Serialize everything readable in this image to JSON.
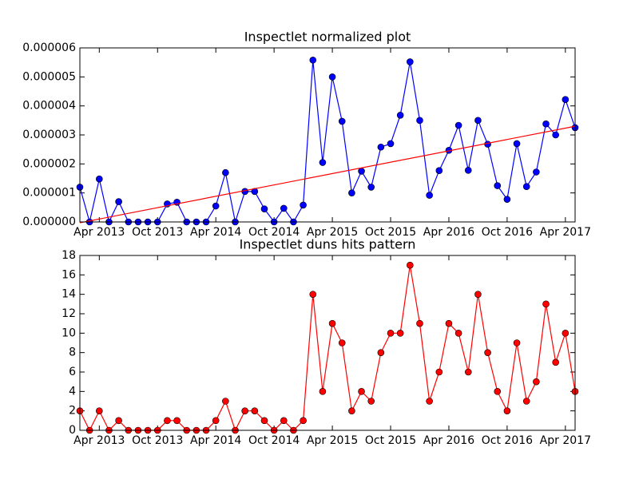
{
  "chart_data": [
    {
      "type": "line",
      "title": "Inspectlet normalized plot",
      "x": [
        "2013-02",
        "2013-03",
        "2013-04",
        "2013-05",
        "2013-06",
        "2013-07",
        "2013-08",
        "2013-09",
        "2013-10",
        "2013-11",
        "2013-12",
        "2014-01",
        "2014-02",
        "2014-03",
        "2014-04",
        "2014-05",
        "2014-06",
        "2014-07",
        "2014-08",
        "2014-09",
        "2014-10",
        "2014-11",
        "2014-12",
        "2015-01",
        "2015-02",
        "2015-03",
        "2015-04",
        "2015-05",
        "2015-06",
        "2015-07",
        "2015-08",
        "2015-09",
        "2015-10",
        "2015-11",
        "2015-12",
        "2016-01",
        "2016-02",
        "2016-03",
        "2016-04",
        "2016-05",
        "2016-06",
        "2016-07",
        "2016-08",
        "2016-09",
        "2016-10",
        "2016-11",
        "2016-12",
        "2017-01",
        "2017-02",
        "2017-03",
        "2017-04",
        "2017-05"
      ],
      "series": [
        {
          "color": "#0000ff",
          "values": [
            1.2e-06,
            0,
            1.48e-06,
            0,
            7e-07,
            0,
            0,
            0,
            0,
            6.2e-07,
            6.8e-07,
            0,
            0,
            0,
            5.5e-07,
            1.7e-06,
            0,
            1.05e-06,
            1.05e-06,
            4.5e-07,
            0,
            4.7e-07,
            0,
            5.8e-07,
            5.58e-06,
            2.05e-06,
            5e-06,
            3.47e-06,
            1e-06,
            1.75e-06,
            1.2e-06,
            2.58e-06,
            2.7e-06,
            3.68e-06,
            5.52e-06,
            3.5e-06,
            9.2e-07,
            1.77e-06,
            2.47e-06,
            3.33e-06,
            1.78e-06,
            3.5e-06,
            2.68e-06,
            1.25e-06,
            7.8e-07,
            2.7e-06,
            1.22e-06,
            1.72e-06,
            3.38e-06,
            3e-06,
            4.22e-06,
            3.25e-06
          ]
        }
      ],
      "trend": {
        "color": "#ff0000",
        "x": [
          "2013-02",
          "2017-05"
        ],
        "values": [
          -3e-08,
          3.3e-06
        ]
      },
      "xlim": [
        "2013-02",
        "2017-05"
      ],
      "xticks": [
        {
          "value": "2013-04",
          "label": "Apr 2013"
        },
        {
          "value": "2013-10",
          "label": "Oct 2013"
        },
        {
          "value": "2014-04",
          "label": "Apr 2014"
        },
        {
          "value": "2014-10",
          "label": "Oct 2014"
        },
        {
          "value": "2015-04",
          "label": "Apr 2015"
        },
        {
          "value": "2015-10",
          "label": "Oct 2015"
        },
        {
          "value": "2016-04",
          "label": "Apr 2016"
        },
        {
          "value": "2016-10",
          "label": "Oct 2016"
        },
        {
          "value": "2017-04",
          "label": "Apr 2017"
        }
      ],
      "ylim": [
        0,
        6e-06
      ],
      "yticks": [
        {
          "value": 0,
          "label": "0.000000"
        },
        {
          "value": 1e-06,
          "label": "0.000001"
        },
        {
          "value": 2e-06,
          "label": "0.000002"
        },
        {
          "value": 3e-06,
          "label": "0.000003"
        },
        {
          "value": 4e-06,
          "label": "0.000004"
        },
        {
          "value": 5e-06,
          "label": "0.000005"
        },
        {
          "value": 6e-06,
          "label": "0.000006"
        }
      ]
    },
    {
      "type": "line",
      "title": "Inspectlet duns hits pattern",
      "x": [
        "2013-02",
        "2013-03",
        "2013-04",
        "2013-05",
        "2013-06",
        "2013-07",
        "2013-08",
        "2013-09",
        "2013-10",
        "2013-11",
        "2013-12",
        "2014-01",
        "2014-02",
        "2014-03",
        "2014-04",
        "2014-05",
        "2014-06",
        "2014-07",
        "2014-08",
        "2014-09",
        "2014-10",
        "2014-11",
        "2014-12",
        "2015-01",
        "2015-02",
        "2015-03",
        "2015-04",
        "2015-05",
        "2015-06",
        "2015-07",
        "2015-08",
        "2015-09",
        "2015-10",
        "2015-11",
        "2015-12",
        "2016-01",
        "2016-02",
        "2016-03",
        "2016-04",
        "2016-05",
        "2016-06",
        "2016-07",
        "2016-08",
        "2016-09",
        "2016-10",
        "2016-11",
        "2016-12",
        "2017-01",
        "2017-02",
        "2017-03",
        "2017-04",
        "2017-05"
      ],
      "series": [
        {
          "color": "#ff0000",
          "values": [
            2,
            0,
            2,
            0,
            1,
            0,
            0,
            0,
            0,
            1,
            1,
            0,
            0,
            0,
            1,
            3,
            0,
            2,
            2,
            1,
            0,
            1,
            0,
            1,
            14,
            4,
            11,
            9,
            2,
            4,
            3,
            8,
            10,
            10,
            17,
            11,
            3,
            6,
            11,
            10,
            6,
            14,
            8,
            4,
            2,
            9,
            3,
            5,
            13,
            7,
            10,
            4
          ]
        }
      ],
      "xlim": [
        "2013-02",
        "2017-05"
      ],
      "xticks": [
        {
          "value": "2013-04",
          "label": "Apr 2013"
        },
        {
          "value": "2013-10",
          "label": "Oct 2013"
        },
        {
          "value": "2014-04",
          "label": "Apr 2014"
        },
        {
          "value": "2014-10",
          "label": "Oct 2014"
        },
        {
          "value": "2015-04",
          "label": "Apr 2015"
        },
        {
          "value": "2015-10",
          "label": "Oct 2015"
        },
        {
          "value": "2016-04",
          "label": "Apr 2016"
        },
        {
          "value": "2016-10",
          "label": "Oct 2016"
        },
        {
          "value": "2017-04",
          "label": "Apr 2017"
        }
      ],
      "ylim": [
        0,
        18
      ],
      "yticks": [
        0,
        2,
        4,
        6,
        8,
        10,
        12,
        14,
        16,
        18
      ]
    }
  ]
}
